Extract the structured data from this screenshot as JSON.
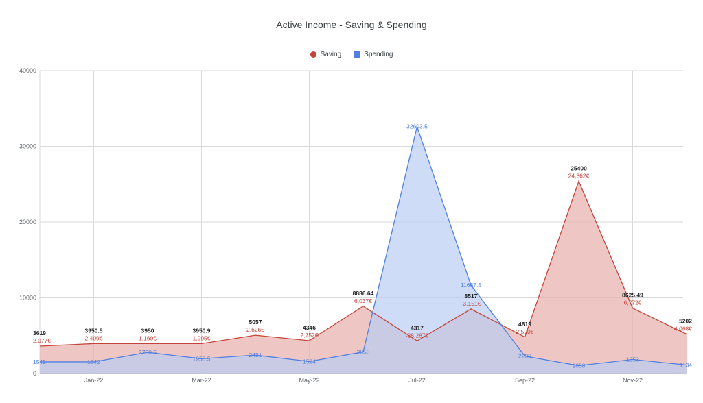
{
  "title": "Active Income - Saving & Spending",
  "colors": {
    "saving": "#c5443a",
    "saving_fill": "#e8b4b0",
    "spending": "#4f7fe0",
    "spending_fill": "#b9cdf3",
    "grid": "#d9d9d9",
    "axis": "#333333"
  },
  "chart_data": {
    "type": "area",
    "title": "Active Income - Saving & Spending",
    "xlabel": "",
    "ylabel": "",
    "ylim": [
      0,
      40000
    ],
    "yticks": [
      "0",
      "10000",
      "20000",
      "30000",
      "40000"
    ],
    "x_tick_labels": [
      "Jan-22",
      "Mar-22",
      "May-22",
      "Jul-22",
      "Sep-22",
      "Nov-22"
    ],
    "categories": [
      "Dec-21",
      "Jan-22",
      "Feb-22",
      "Mar-22",
      "Apr-22",
      "May-22",
      "Jun-22",
      "Jul-22",
      "Aug-22",
      "Sep-22",
      "Oct-22",
      "Nov-22",
      "Dec-22"
    ],
    "totals": [
      "3619",
      "3950.5",
      "3950",
      "3950.9",
      "5057",
      "4346",
      "8886.64",
      "4317",
      "8517",
      "4819",
      "25400",
      "8625.49",
      "5202"
    ],
    "legend_position": "top",
    "grid": true,
    "series": [
      {
        "name": "Saving",
        "values": [
          3619,
          3950.5,
          3950,
          3950.9,
          5057,
          4346,
          8886.64,
          4317,
          8517,
          4819,
          25400,
          8625.49,
          5202
        ],
        "labels": [
          "2,077€",
          "2,409€",
          "1,160€",
          "1,995€",
          "2,626€",
          "2,752€",
          "6,037€",
          "-28,287€",
          "-3,151€",
          "2,520€",
          "24,362€",
          "6,772€",
          "4,068€"
        ]
      },
      {
        "name": "Spending",
        "values": [
          1542,
          1542,
          2790.5,
          1955.5,
          2431,
          1594,
          2850,
          32603.5,
          11667.5,
          2299,
          1038,
          1853,
          1134
        ],
        "labels": [
          "1542",
          "1542",
          "2790.5",
          "1955.5",
          "2431",
          "1594",
          "2850",
          "32603.5",
          "11667.5",
          "2299",
          "1038",
          "1853",
          "1134"
        ]
      }
    ]
  }
}
